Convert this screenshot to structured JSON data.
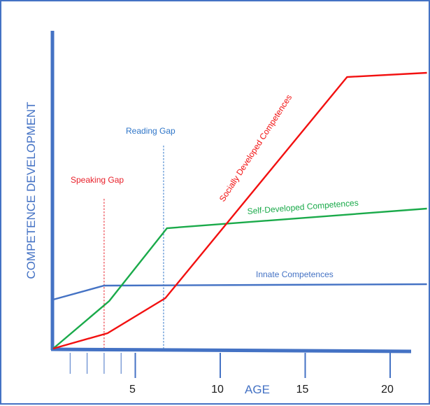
{
  "colors": {
    "frame": "#4472c4",
    "axis": "#4472c4",
    "innate": "#4472c4",
    "self": "#1aaa4a",
    "social": "#f21010",
    "reading_gap": "#2e75c8",
    "speaking_gap": "#e8202a",
    "tick_text": "#1a1a1a"
  },
  "chart_data": {
    "type": "line",
    "title": "",
    "xlabel": "AGE",
    "ylabel": "COMPETENCE DEVELOPMENT",
    "xlim": [
      0,
      22
    ],
    "ylim": [
      0,
      100
    ],
    "x_ticks": [
      5,
      10,
      15,
      20
    ],
    "x_tick_labels": [
      "5",
      "10",
      "15",
      "20"
    ],
    "minor_x_ticks": [
      1,
      2,
      3,
      4
    ],
    "grid": false,
    "legend": "none (series labelled directly on chart)",
    "series": [
      {
        "name": "Innate Competences",
        "color_key": "innate",
        "x": [
          0,
          3,
          22
        ],
        "y": [
          17.5,
          22.5,
          23
        ]
      },
      {
        "name": "Self-Developed Competences",
        "color_key": "self",
        "x": [
          0,
          3.3,
          6.7,
          22
        ],
        "y": [
          0,
          17,
          43,
          50
        ]
      },
      {
        "name": "Socially Developed Competences",
        "color_key": "social",
        "x": [
          0,
          3.2,
          6.6,
          17.3,
          22
        ],
        "y": [
          0,
          5.5,
          18,
          97,
          98.5
        ]
      }
    ],
    "annotations": [
      {
        "label": "Speaking Gap",
        "x": 3,
        "y_top": 53.5,
        "color_key": "speaking_gap"
      },
      {
        "label": "Reading Gap",
        "x": 6.5,
        "y_top": 72.5,
        "color_key": "reading_gap"
      }
    ]
  }
}
